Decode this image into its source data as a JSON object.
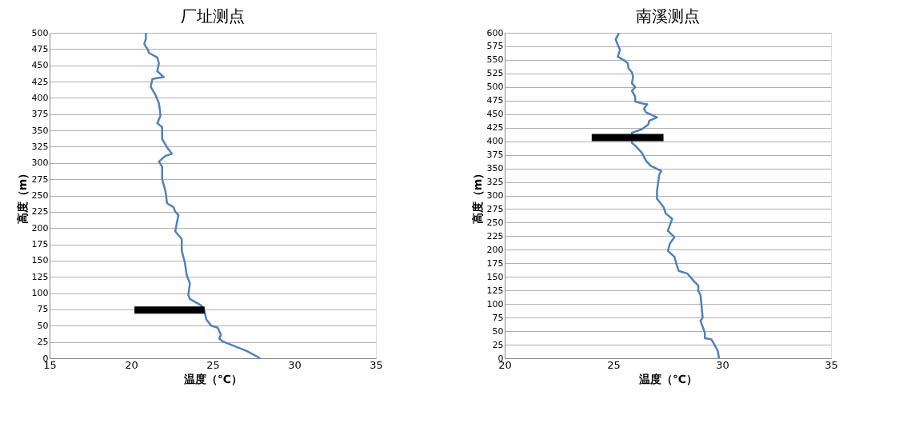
{
  "chart_data": [
    {
      "type": "line",
      "title": "厂址测点",
      "xlabel": "温度（℃）",
      "ylabel": "高度（m）",
      "xlim": [
        15,
        35
      ],
      "xticks": [
        15,
        20,
        25,
        30,
        35
      ],
      "ylim": [
        0,
        500
      ],
      "yticks": [
        0,
        25,
        50,
        75,
        100,
        125,
        150,
        175,
        200,
        225,
        250,
        275,
        300,
        325,
        350,
        375,
        400,
        425,
        450,
        475,
        500
      ],
      "grid": "y",
      "line_style": "solid",
      "marker": "none",
      "series": [
        {
          "color": "#4f81bd",
          "x": [
            27.9,
            27.1,
            25.6,
            25.4,
            25.5,
            25.3,
            24.9,
            24.6,
            24.5,
            24.3,
            23.6,
            23.5,
            23.6,
            23.4,
            23.3,
            23.1,
            23.1,
            22.7,
            22.8,
            22.9,
            22.7,
            22.6,
            22.2,
            22.1,
            21.9,
            21.9,
            21.7,
            22.1,
            22.5,
            22.2,
            21.9,
            21.9,
            21.6,
            21.8,
            21.7,
            21.5,
            21.2,
            21.3,
            22.0,
            21.6,
            21.7,
            21.6,
            21.1,
            21.0,
            20.8,
            20.9,
            20.9
          ],
          "values": [
            0,
            11,
            26,
            30,
            36,
            47,
            50,
            60,
            72,
            81,
            91,
            97,
            115,
            128,
            146,
            165,
            183,
            195,
            208,
            220,
            225,
            232,
            238,
            257,
            275,
            294,
            302,
            311,
            314,
            324,
            337,
            355,
            361,
            373,
            392,
            404,
            417,
            429,
            432,
            441,
            453,
            462,
            469,
            475,
            483,
            490,
            500
          ]
        },
        {
          "type": "line",
          "color": "#000000",
          "x": [
            20.2,
            24.5
          ],
          "values": [
            74,
            74
          ]
        }
      ]
    },
    {
      "type": "line",
      "title": "南溪测点",
      "xlabel": "温度（℃）",
      "ylabel": "高度（m）",
      "xlim": [
        20,
        35
      ],
      "xticks": [
        20,
        25,
        30,
        35
      ],
      "ylim": [
        0,
        600
      ],
      "yticks": [
        0,
        25,
        50,
        75,
        100,
        125,
        150,
        175,
        200,
        225,
        250,
        275,
        300,
        325,
        350,
        375,
        400,
        425,
        450,
        475,
        500,
        525,
        550,
        575,
        600
      ],
      "grid": "y",
      "line_style": "solid",
      "marker": "none",
      "series": [
        {
          "color": "#4f81bd",
          "x": [
            29.85,
            29.8,
            29.6,
            29.5,
            29.2,
            29.2,
            29.1,
            29.0,
            29.1,
            29.0,
            28.9,
            28.9,
            28.7,
            28.4,
            28.0,
            27.9,
            27.8,
            27.5,
            27.6,
            27.8,
            27.5,
            27.7,
            27.4,
            27.3,
            27.0,
            27.0,
            27.1,
            27.2,
            26.7,
            26.5,
            26.3,
            26.0,
            25.85,
            25.85,
            26.3,
            26.6,
            26.65,
            27.0,
            26.8,
            26.5,
            26.4,
            26.55,
            26.3,
            26.0,
            26.0,
            25.85,
            26.0,
            25.85,
            25.9,
            25.85,
            25.7,
            25.65,
            25.5,
            25.2,
            25.3,
            25.2,
            25.1,
            25.25
          ],
          "values": [
            0,
            13,
            28,
            35,
            37,
            47,
            58,
            69,
            75,
            117,
            124,
            134,
            142,
            156,
            161,
            173,
            187,
            198,
            212,
            223,
            235,
            257,
            267,
            279,
            294,
            308,
            338,
            345,
            355,
            364,
            379,
            392,
            397,
            416,
            422,
            431,
            438,
            444,
            448,
            453,
            460,
            468,
            470,
            473,
            482,
            493,
            500,
            507,
            519,
            527,
            534,
            544,
            549,
            556,
            569,
            578,
            588,
            599
          ]
        },
        {
          "type": "line",
          "color": "#000000",
          "x": [
            24.0,
            27.3
          ],
          "values": [
            407,
            407
          ]
        }
      ]
    }
  ]
}
